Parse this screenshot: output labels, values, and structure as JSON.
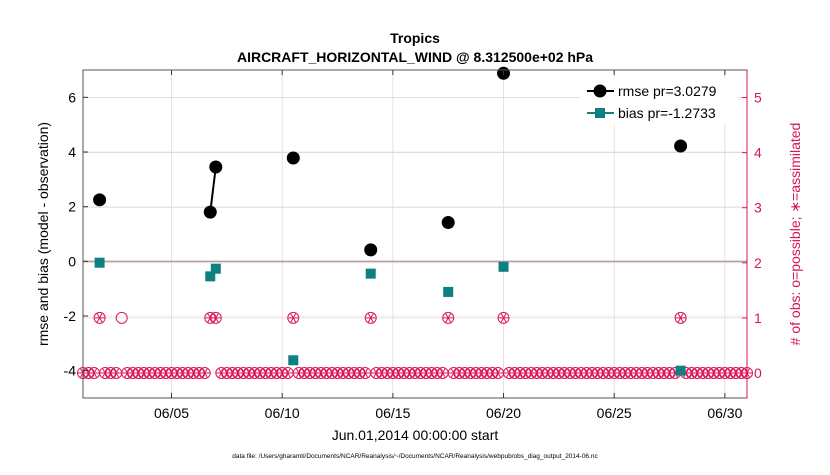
{
  "chart_data": {
    "type": "line",
    "title": "Tropics",
    "subtitle": "AIRCRAFT_HORIZONTAL_WIND @ 8.312500e+02 hPa",
    "xlabel": "Jun.01,2014 00:00:00 start",
    "ylabel_left": "rmse and bias (model - observation)",
    "ylabel_right": "# of obs: o=possible; ∗=assimilated",
    "footer": "data file: /Users/gharamti/Documents/NCAR/Reanalysis/~/Documents/NCAR/Reanalysis/webpub/obs_diag_output_2014-06.nc",
    "xlim": [
      1,
      31
    ],
    "ylim_left": [
      -5,
      7
    ],
    "ylim_right": [
      -0.4545,
      5.5
    ],
    "x_ticks": [
      5,
      10,
      15,
      20,
      25,
      30
    ],
    "x_tick_labels": [
      "06/05",
      "06/10",
      "06/15",
      "06/20",
      "06/25",
      "06/30"
    ],
    "y_ticks_left": [
      -4,
      -2,
      0,
      2,
      4,
      6
    ],
    "y_tick_labels_left": [
      "-4",
      "-2",
      "0",
      "2",
      "4",
      "6"
    ],
    "y_ticks_right": [
      0,
      1,
      2,
      3,
      4,
      5
    ],
    "y_tick_labels_right": [
      "0",
      "1",
      "2",
      "3",
      "4",
      "5"
    ],
    "zero_line": 0,
    "colors": {
      "rmse": "#000000",
      "bias": "#0f8080",
      "obs": "#d8145a",
      "zero": "#b0a0a0",
      "grid": "#e6d0d8"
    },
    "series": [
      {
        "name": "rmse",
        "legend": "rmse pr=3.0279",
        "marker": "circle",
        "segments": [
          [
            [
              1.75,
              2.25
            ]
          ],
          [
            [
              6.75,
              1.8
            ],
            [
              7.0,
              3.45
            ]
          ],
          [
            [
              10.5,
              3.78
            ]
          ],
          [
            [
              14.0,
              0.42
            ]
          ],
          [
            [
              17.5,
              1.42
            ]
          ],
          [
            [
              20.0,
              6.88
            ]
          ],
          [
            [
              28.0,
              4.22
            ]
          ]
        ]
      },
      {
        "name": "bias",
        "legend": "bias pr=-1.2733",
        "marker": "square",
        "segments": [
          [
            [
              1.75,
              -0.05
            ]
          ],
          [
            [
              6.75,
              -0.55
            ],
            [
              7.0,
              -0.27
            ]
          ],
          [
            [
              10.5,
              -3.62
            ]
          ],
          [
            [
              14.0,
              -0.45
            ]
          ],
          [
            [
              17.5,
              -1.12
            ]
          ],
          [
            [
              20.0,
              -0.2
            ]
          ],
          [
            [
              28.0,
              -4.0
            ]
          ]
        ]
      }
    ],
    "obs_possible": {
      "count_zero_start": 1.0,
      "count_zero_end": 31.0,
      "count_zero_step": 0.25,
      "count_one_times": [
        1.75,
        2.75,
        6.75,
        7.0,
        10.5,
        14.0,
        17.5,
        20.0,
        28.0
      ]
    },
    "obs_assimilated": {
      "count_zero_times_excluded": [],
      "count_one_times": [
        1.75,
        6.75,
        7.0,
        10.5,
        14.0,
        17.5,
        20.0,
        28.0
      ]
    }
  }
}
